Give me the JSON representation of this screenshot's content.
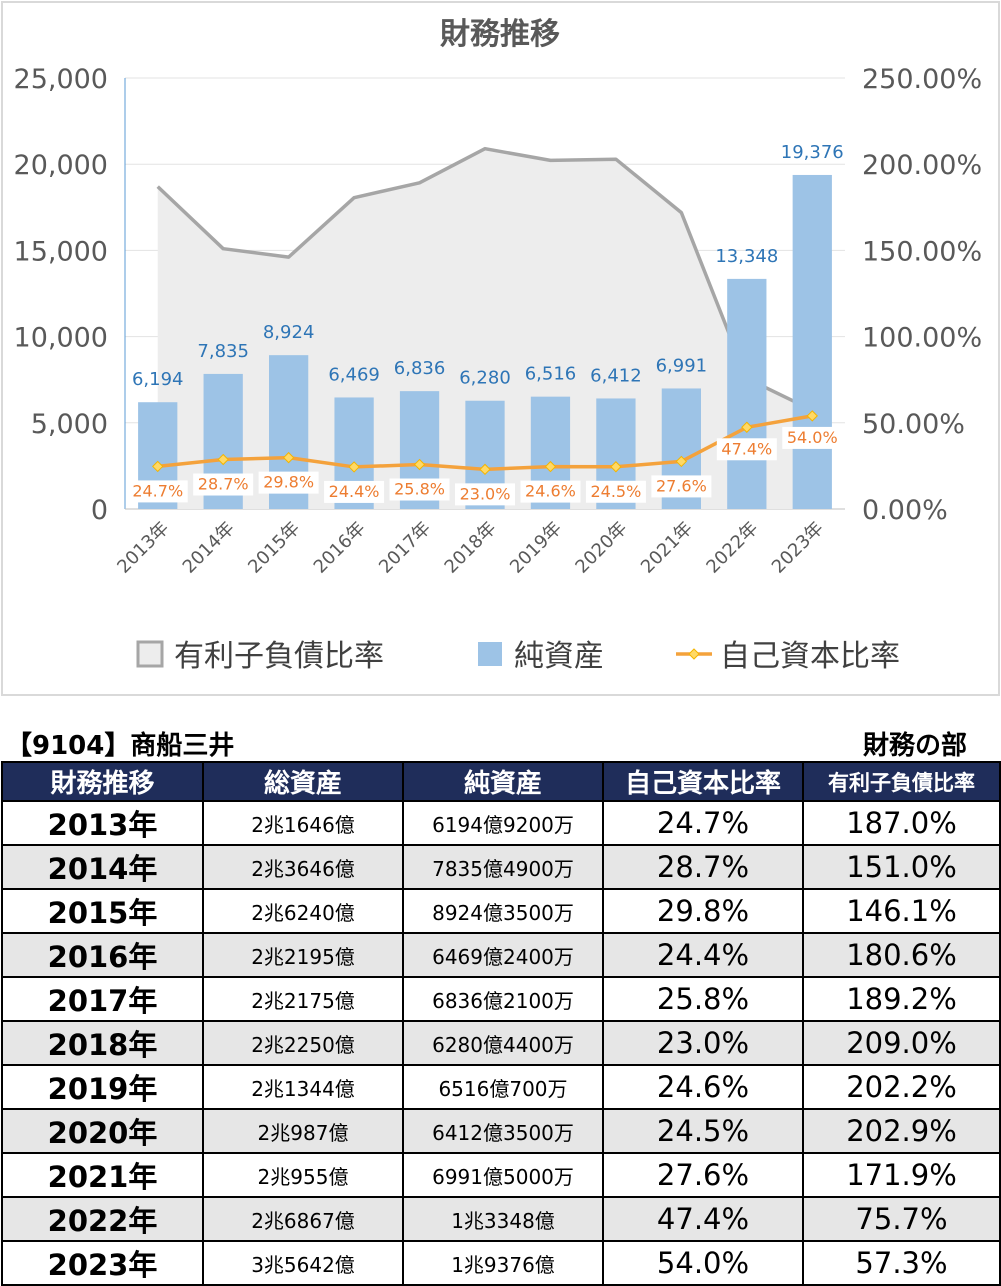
{
  "chart_data": {
    "type": "bar",
    "title": "財務推移",
    "categories": [
      "2013年",
      "2014年",
      "2015年",
      "2016年",
      "2017年",
      "2018年",
      "2019年",
      "2020年",
      "2021年",
      "2022年",
      "2023年"
    ],
    "y_left_ticks": [
      "25,000",
      "20,000",
      "15,000",
      "10,000",
      "5,000",
      "0"
    ],
    "y_right_ticks": [
      "250.00%",
      "200.00%",
      "150.00%",
      "100.00%",
      "50.00%",
      "0.00%"
    ],
    "y_left_range": [
      0,
      25000
    ],
    "y_right_range": [
      0,
      250
    ],
    "grid": true,
    "legend_position": "bottom",
    "series": [
      {
        "name": "有利子負債比率",
        "kind": "area",
        "axis": "right",
        "color": "#a6a6a6",
        "values": [
          187.0,
          151.0,
          146.1,
          180.6,
          189.2,
          209.0,
          202.2,
          202.9,
          171.9,
          75.7,
          57.3
        ]
      },
      {
        "name": "純資産",
        "kind": "bar",
        "axis": "left",
        "color": "#9dc3e6",
        "values": [
          6194,
          7835,
          8924,
          6469,
          6836,
          6280,
          6516,
          6412,
          6991,
          13348,
          19376
        ],
        "labels": [
          "6,194",
          "7,835",
          "8,924",
          "6,469",
          "6,836",
          "6,280",
          "6,516",
          "6,412",
          "6,991",
          "13,348",
          "19,376"
        ]
      },
      {
        "name": "自己資本比率",
        "kind": "line",
        "axis": "right",
        "color": "#f4a23c",
        "values": [
          24.7,
          28.7,
          29.8,
          24.4,
          25.8,
          23.0,
          24.6,
          24.5,
          27.6,
          47.4,
          54.0
        ],
        "labels": [
          "24.7%",
          "28.7%",
          "29.8%",
          "24.4%",
          "25.8%",
          "23.0%",
          "24.6%",
          "24.5%",
          "27.6%",
          "47.4%",
          "54.0%"
        ]
      }
    ]
  },
  "colors": {
    "header_bg": "#1f2d5a",
    "bar": "#9dc3e6",
    "bar_label": "#2e75b6",
    "line": "#f4a23c",
    "line_label": "#ed7d31",
    "area": "#ededed"
  },
  "header": {
    "company": "【9104】商船三井",
    "section": "財務の部"
  },
  "table": {
    "columns": [
      "財務推移",
      "総資産",
      "純資産",
      "自己資本比率",
      "有利子負債比率"
    ],
    "rows": [
      [
        "2013年",
        "2兆1646億",
        "6194億9200万",
        "24.7%",
        "187.0%"
      ],
      [
        "2014年",
        "2兆3646億",
        "7835億4900万",
        "28.7%",
        "151.0%"
      ],
      [
        "2015年",
        "2兆6240億",
        "8924億3500万",
        "29.8%",
        "146.1%"
      ],
      [
        "2016年",
        "2兆2195億",
        "6469億2400万",
        "24.4%",
        "180.6%"
      ],
      [
        "2017年",
        "2兆2175億",
        "6836億2100万",
        "25.8%",
        "189.2%"
      ],
      [
        "2018年",
        "2兆2250億",
        "6280億4400万",
        "23.0%",
        "209.0%"
      ],
      [
        "2019年",
        "2兆1344億",
        "6516億700万",
        "24.6%",
        "202.2%"
      ],
      [
        "2020年",
        "2兆987億",
        "6412億3500万",
        "24.5%",
        "202.9%"
      ],
      [
        "2021年",
        "2兆955億",
        "6991億5000万",
        "27.6%",
        "171.9%"
      ],
      [
        "2022年",
        "2兆6867億",
        "1兆3348億",
        "47.4%",
        "75.7%"
      ],
      [
        "2023年",
        "3兆5642億",
        "1兆9376億",
        "54.0%",
        "57.3%"
      ]
    ]
  }
}
